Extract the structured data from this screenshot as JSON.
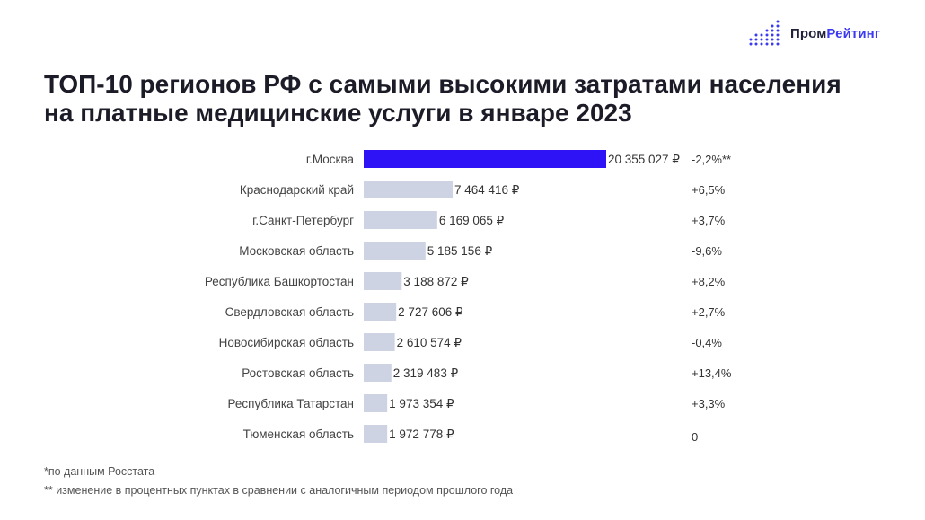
{
  "brand": {
    "name_part1": "Пром",
    "name_part2": "Рейтинг",
    "accent_color": "#3a3af0"
  },
  "title_line1": "ТОП-10 регионов РФ с самыми высокими затратами населения",
  "title_line2": "на платные медицинские услуги в январе 2023",
  "footnotes": {
    "note1": "*по данным Росстата",
    "note2": "** изменение в процентных пунктах в сравнении с аналогичным периодом прошлого года"
  },
  "chart_data": {
    "type": "bar",
    "orientation": "horizontal",
    "categories": [
      "г.Москва",
      "Краснодарский край",
      "г.Санкт-Петербург",
      "Московская область",
      "Республика Башкортостан",
      "Свердловская область",
      "Новосибирская область",
      "Ростовская область",
      "Республика Татарстан",
      "Тюменская область"
    ],
    "values": [
      20355027,
      7464416,
      6169065,
      5185156,
      3188872,
      2727606,
      2610574,
      2319483,
      1973354,
      1972778
    ],
    "value_labels": [
      "20 355 027 ₽",
      "7 464 416 ₽",
      "6 169 065 ₽",
      "5 185 156 ₽",
      "3 188 872 ₽",
      "2 727 606 ₽",
      "2 610 574 ₽",
      "2 319 483 ₽",
      "1 973 354 ₽",
      "1 972 778 ₽"
    ],
    "changes": [
      "-2,2%**",
      "+6,5%",
      "+3,7%",
      "-9,6%",
      "+8,2%",
      "+2,7%",
      "-0,4%",
      "+13,4%",
      "+3,3%",
      "0"
    ],
    "highlight_index": 0,
    "colors": {
      "highlight": "#2d13f5",
      "default": "#cdd3e3"
    },
    "grid": false,
    "legend": "none"
  }
}
